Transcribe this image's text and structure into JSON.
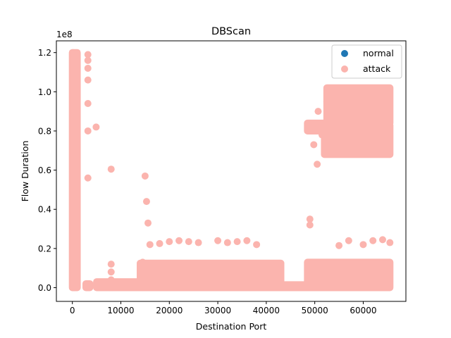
{
  "chart_data": {
    "type": "scatter",
    "title": "DBScan",
    "xlabel": "Destination Port",
    "ylabel": "Flow Duration",
    "y_offset_text": "1e8",
    "xlim": [
      -3300,
      68800
    ],
    "ylim": [
      -7000000,
      126000000
    ],
    "x_ticks": [
      0,
      10000,
      20000,
      30000,
      40000,
      50000,
      60000
    ],
    "x_tick_labels": [
      "0",
      "10000",
      "20000",
      "30000",
      "40000",
      "50000",
      "60000"
    ],
    "y_ticks": [
      0,
      20000000,
      40000000,
      60000000,
      80000000,
      100000000,
      120000000
    ],
    "y_tick_labels": [
      "0.0",
      "0.2",
      "0.4",
      "0.6",
      "0.8",
      "1.0",
      "1.2"
    ],
    "grid": false,
    "legend_position": "top-right",
    "series": [
      {
        "name": "normal",
        "color": "#1f77b4",
        "points": []
      },
      {
        "name": "attack",
        "color": "#fbb4ae",
        "points": [
          [
            80,
            120000000
          ],
          [
            80,
            112000000
          ],
          [
            80,
            104000000
          ],
          [
            80,
            96000000
          ],
          [
            80,
            88000000
          ],
          [
            80,
            80000000
          ],
          [
            80,
            72000000
          ],
          [
            80,
            64000000
          ],
          [
            80,
            56000000
          ],
          [
            80,
            48000000
          ],
          [
            80,
            40000000
          ],
          [
            80,
            32000000
          ],
          [
            80,
            24000000
          ],
          [
            80,
            16000000
          ],
          [
            80,
            8000000
          ],
          [
            80,
            0
          ],
          [
            3200,
            119000000
          ],
          [
            3200,
            116000000
          ],
          [
            3200,
            112000000
          ],
          [
            3200,
            106000000
          ],
          [
            3200,
            94000000
          ],
          [
            3200,
            80000000
          ],
          [
            3200,
            56000000
          ],
          [
            3200,
            0
          ],
          [
            4900,
            82000000
          ],
          [
            8000,
            60500000
          ],
          [
            15000,
            57000000
          ],
          [
            15300,
            44000000
          ],
          [
            15600,
            33000000
          ],
          [
            8000,
            12000000
          ],
          [
            8000,
            8000000
          ],
          [
            8000,
            4000000
          ],
          [
            8000,
            0
          ],
          [
            14500,
            13000000
          ],
          [
            14500,
            6000000
          ],
          [
            14500,
            0
          ],
          [
            16000,
            22000000
          ],
          [
            18000,
            22500000
          ],
          [
            20000,
            23500000
          ],
          [
            22000,
            24000000
          ],
          [
            24000,
            23500000
          ],
          [
            26000,
            23000000
          ],
          [
            30000,
            24000000
          ],
          [
            32000,
            23000000
          ],
          [
            34000,
            23500000
          ],
          [
            36000,
            24000000
          ],
          [
            38000,
            22000000
          ],
          [
            49000,
            35000000
          ],
          [
            49000,
            32000000
          ],
          [
            49300,
            82000000
          ],
          [
            49800,
            73000000
          ],
          [
            50500,
            63000000
          ],
          [
            50700,
            90000000
          ],
          [
            51500,
            78000000
          ],
          [
            52500,
            95000000
          ],
          [
            55000,
            21500000
          ],
          [
            57000,
            24000000
          ],
          [
            57000,
            82000000
          ],
          [
            63000,
            92000000
          ],
          [
            60000,
            22000000
          ],
          [
            62000,
            24000000
          ],
          [
            64000,
            24500000
          ],
          [
            65500,
            23000000
          ]
        ],
        "bands": [
          {
            "x": [
              0,
              1000
            ],
            "y": [
              0,
              120000000
            ]
          },
          {
            "x": [
              2800,
              3600
            ],
            "y": [
              0,
              2000000
            ]
          },
          {
            "x": [
              5000,
              15000
            ],
            "y": [
              0,
              3000000
            ]
          },
          {
            "x": [
              14000,
              43000
            ],
            "y": [
              0,
              12500000
            ]
          },
          {
            "x": [
              43000,
              48500
            ],
            "y": [
              0,
              1500000
            ]
          },
          {
            "x": [
              48500,
              65500
            ],
            "y": [
              0,
              13000000
            ]
          },
          {
            "x": [
              48500,
              52500
            ],
            "y": [
              80000000,
              84000000
            ]
          },
          {
            "x": [
              52500,
              65500
            ],
            "y": [
              84000000,
              102000000
            ]
          },
          {
            "x": [
              52000,
              65500
            ],
            "y": [
              68000000,
              83000000
            ]
          }
        ]
      }
    ]
  }
}
